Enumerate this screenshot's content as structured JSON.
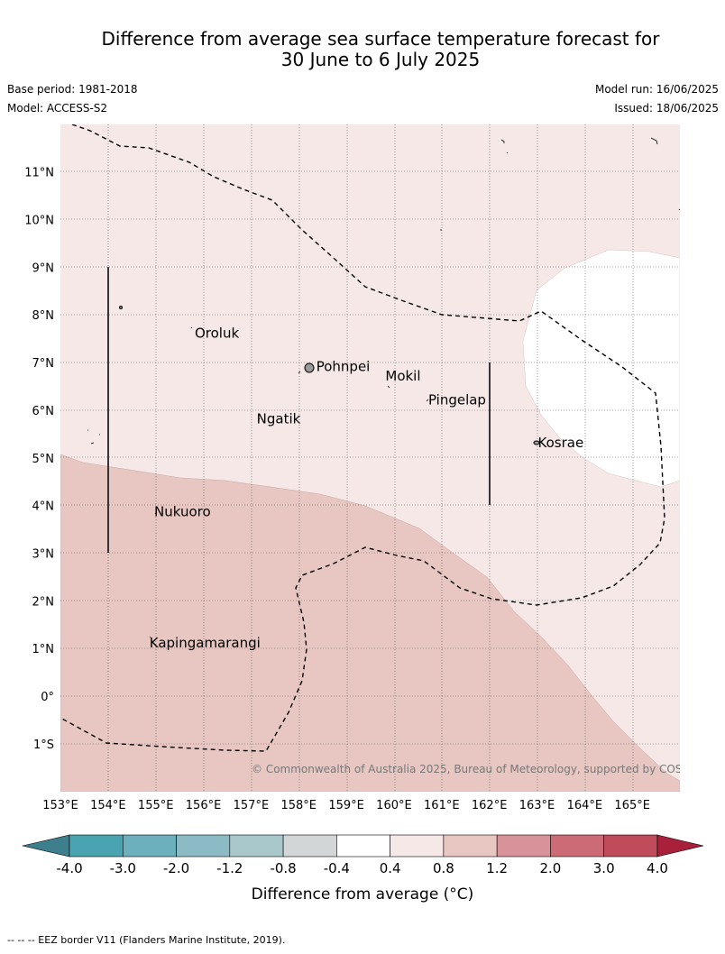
{
  "title": {
    "line1": "Difference from average sea surface temperature forecast for",
    "line2": "30 June to 6 July 2025"
  },
  "meta": {
    "base_period": "Base period: 1981-2018",
    "model": "Model: ACCESS-S2",
    "model_run": "Model run: 16/06/2025",
    "issued": "Issued: 18/06/2025"
  },
  "map": {
    "lon_range": [
      153,
      166
    ],
    "lat_range": [
      -2,
      12
    ],
    "lat_labels": [
      {
        "lat": 11,
        "text": "11°N"
      },
      {
        "lat": 10,
        "text": "10°N"
      },
      {
        "lat": 9,
        "text": "9°N"
      },
      {
        "lat": 8,
        "text": "8°N"
      },
      {
        "lat": 7,
        "text": "7°N"
      },
      {
        "lat": 6,
        "text": "6°N"
      },
      {
        "lat": 5,
        "text": "5°N"
      },
      {
        "lat": 4,
        "text": "4°N"
      },
      {
        "lat": 3,
        "text": "3°N"
      },
      {
        "lat": 2,
        "text": "2°N"
      },
      {
        "lat": 1,
        "text": "1°N"
      },
      {
        "lat": 0,
        "text": "0°"
      },
      {
        "lat": -1,
        "text": "1°S"
      }
    ],
    "lon_labels": [
      {
        "lon": 153,
        "text": "153°E"
      },
      {
        "lon": 154,
        "text": "154°E"
      },
      {
        "lon": 155,
        "text": "155°E"
      },
      {
        "lon": 156,
        "text": "156°E"
      },
      {
        "lon": 157,
        "text": "157°E"
      },
      {
        "lon": 158,
        "text": "158°E"
      },
      {
        "lon": 159,
        "text": "159°E"
      },
      {
        "lon": 160,
        "text": "160°E"
      },
      {
        "lon": 161,
        "text": "161°E"
      },
      {
        "lon": 162,
        "text": "162°E"
      },
      {
        "lon": 163,
        "text": "163°E"
      },
      {
        "lon": 164,
        "text": "164°E"
      },
      {
        "lon": 165,
        "text": "165°E"
      }
    ],
    "places": [
      {
        "name": "Oroluk",
        "lon": 155.8,
        "lat": 7.6
      },
      {
        "name": "Pohnpei",
        "lon": 158.35,
        "lat": 6.9
      },
      {
        "name": "Mokil",
        "lon": 159.8,
        "lat": 6.7
      },
      {
        "name": "Pingelap",
        "lon": 160.7,
        "lat": 6.2
      },
      {
        "name": "Ngatik",
        "lon": 157.1,
        "lat": 5.8
      },
      {
        "name": "Kosrae",
        "lon": 163.0,
        "lat": 5.3
      },
      {
        "name": "Nukuoro",
        "lon": 154.95,
        "lat": 3.85
      },
      {
        "name": "Kapingamarangi",
        "lon": 154.85,
        "lat": 1.1
      }
    ],
    "regions": [
      {
        "category": "0.4 to 0.8",
        "color": "#f5e8e7"
      },
      {
        "category": "0.8 to 1.2",
        "color": "#e8c7c2"
      },
      {
        "category": "-0.4 to 0.4",
        "color": "#ffffff"
      }
    ],
    "copyright": "© Commonwealth of Australia 2025, Bureau of Meteorology, supported by COSPPac"
  },
  "colorbar": {
    "title": "Difference from average (°C)",
    "ticks": [
      "-4.0",
      "-3.0",
      "-2.0",
      "-1.2",
      "-0.8",
      "-0.4",
      "0.4",
      "0.8",
      "1.2",
      "2.0",
      "3.0",
      "4.0"
    ],
    "under_color": "#3d7f8c",
    "colors": [
      "#4aa3b1",
      "#6db0bd",
      "#8dbbc5",
      "#a8c8cc",
      "#d2d6d6",
      "#ffffff",
      "#f5e8e7",
      "#e8c7c2",
      "#d8939a",
      "#cc6b76",
      "#c04b5a"
    ],
    "over_color": "#a8203a"
  },
  "footnote": "--  --  -- EEZ border V11 (Flanders Marine Institute, 2019)."
}
